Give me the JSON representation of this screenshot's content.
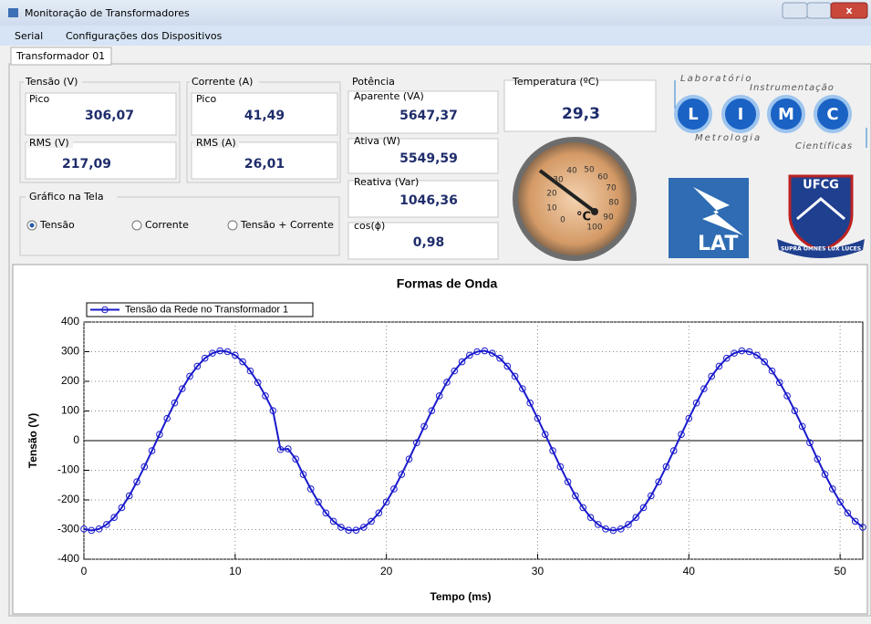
{
  "window": {
    "title": "Monitoração de Transformadores"
  },
  "menu": [
    "Serial",
    "Configurações dos Dispositivos"
  ],
  "tab": "Transformador 01",
  "tensao": {
    "label": "Tensão (V)",
    "pico_label": "Pico",
    "pico": "306,07",
    "rms_label": "RMS (V)",
    "rms": "217,09"
  },
  "corrente": {
    "label": "Corrente (A)",
    "pico_label": "Pico",
    "pico": "41,49",
    "rms_label": "RMS (A)",
    "rms": "26,01"
  },
  "grafico": {
    "label": "Gráfico na Tela",
    "options": [
      "Tensão",
      "Corrente",
      "Tensão + Corrente"
    ]
  },
  "potencia": {
    "label": "Potência",
    "aparente_label": "Aparente (VA)",
    "aparente": "5647,37",
    "ativa_label": "Ativa (W)",
    "ativa": "5549,59",
    "reativa_label": "Reativa (Var)",
    "reativa": "1046,36",
    "cos_label": "cos(ϕ)",
    "cos": "0,98"
  },
  "temperatura": {
    "label": "Temperatura (ºC)",
    "value": "29,3"
  },
  "gauge": {
    "ticks": [
      0,
      10,
      20,
      30,
      40,
      50,
      60,
      70,
      80,
      90,
      100
    ],
    "unit": "°C"
  },
  "logos": {
    "limc_words": [
      "Laboratório",
      "Instrumentação",
      "Metrologia",
      "Científicas"
    ],
    "limc_letters": [
      "L",
      "I",
      "M",
      "C"
    ],
    "lat": "LAT",
    "ufcg": "UFCG",
    "motto": "SUPRA OMNES LUX LUCES"
  },
  "chart_data": {
    "type": "line",
    "title": "Formas de Onda",
    "xlabel": "Tempo (ms)",
    "ylabel": "Tensão (V)",
    "x": [
      0,
      0.5,
      1,
      1.5,
      2,
      2.5,
      3,
      3.5,
      4,
      4.5,
      5,
      5.5,
      6,
      6.5,
      7,
      7.5,
      8,
      8.5,
      9,
      9.5,
      10,
      10.5,
      11,
      11.5,
      12,
      12.5,
      13,
      13.5,
      14,
      14.5,
      15,
      15.5,
      16,
      16.5,
      17,
      17.5,
      18,
      18.5,
      19,
      19.5,
      20,
      20.5,
      21,
      21.5,
      22,
      22.5,
      23,
      23.5,
      24,
      24.5,
      25,
      25.5,
      26,
      26.5,
      27,
      27.5,
      28,
      28.5,
      29,
      29.5,
      30,
      30.5,
      31,
      31.5,
      32,
      32.5,
      33,
      33.5,
      34,
      34.5,
      35,
      35.5,
      36,
      36.5,
      37,
      37.5,
      38,
      38.5,
      39,
      39.5,
      40,
      40.5,
      41,
      41.5,
      42,
      42.5,
      43,
      43.5,
      44,
      44.5,
      45,
      45.5,
      46,
      46.5,
      47,
      47.5,
      48,
      48.5,
      49,
      49.5,
      50,
      50.5,
      51,
      51.5
    ],
    "series": [
      {
        "name": "Tensão da Rede no Transformador 1",
        "color": "#1a1acc",
        "values": [
          -298,
          -303,
          -298,
          -283,
          -259,
          -226,
          -186,
          -139,
          -88,
          -34,
          21,
          75,
          127,
          175,
          217,
          251,
          278,
          295,
          303,
          300,
          288,
          266,
          235,
          196,
          151,
          101,
          -30,
          -28,
          -62,
          -114,
          -163,
          -207,
          -244,
          -272,
          -292,
          -302,
          -302,
          -292,
          -272,
          -244,
          -207,
          -163,
          -114,
          -62,
          -7,
          48,
          101,
          151,
          197,
          235,
          266,
          288,
          300,
          303,
          295,
          278,
          251,
          217,
          175,
          127,
          75,
          21,
          -34,
          -88,
          -139,
          -186,
          -226,
          -259,
          -283,
          -298,
          -303,
          -298,
          -283,
          -259,
          -226,
          -186,
          -139,
          -88,
          -34,
          21,
          75,
          127,
          175,
          217,
          251,
          278,
          295,
          303,
          300,
          288,
          266,
          235,
          196,
          151,
          101,
          48,
          -7,
          -62,
          -114,
          -163,
          -207,
          -244,
          -272,
          -292
        ]
      }
    ],
    "xlim": [
      0,
      51.5
    ],
    "xticks": [
      0,
      10,
      20,
      30,
      40,
      50
    ],
    "ylim": [
      -400,
      400
    ],
    "yticks": [
      -400,
      -300,
      -200,
      -100,
      0,
      100,
      200,
      300,
      400
    ],
    "grid": true,
    "legend": "top-left"
  }
}
